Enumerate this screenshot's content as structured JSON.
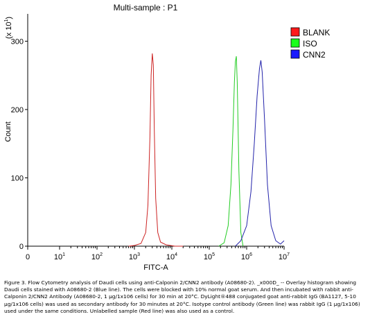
{
  "chart_data": {
    "type": "line",
    "title": "Multi-sample : P1",
    "xlabel": "FITC-A",
    "ylabel": "Count",
    "y_multiplier_label": "(x 10",
    "y_multiplier_exp": "1",
    "y_multiplier_close": ")",
    "x_scale": "log",
    "xlim": [
      0,
      10000000
    ],
    "ylim": [
      0,
      340
    ],
    "x_ticks": [
      {
        "value": 0,
        "base": "0",
        "exp": ""
      },
      {
        "value": 10,
        "base": "10",
        "exp": "1"
      },
      {
        "value": 100,
        "base": "10",
        "exp": "2"
      },
      {
        "value": 1000,
        "base": "10",
        "exp": "3"
      },
      {
        "value": 10000,
        "base": "10",
        "exp": "4"
      },
      {
        "value": 100000,
        "base": "10",
        "exp": "5"
      },
      {
        "value": 1000000,
        "base": "10",
        "exp": "6"
      },
      {
        "value": 10000000,
        "base": "10",
        "exp": "7"
      }
    ],
    "y_ticks": [
      0,
      100,
      200,
      300
    ],
    "grid": false,
    "legend_position": "right",
    "series": [
      {
        "name": "BLANK",
        "color": "#cc2222",
        "legend_color": "#ff1a1a",
        "x": [
          700,
          1000,
          1500,
          2000,
          2300,
          2600,
          2800,
          3000,
          3200,
          3400,
          3700,
          4200,
          5000,
          7000,
          12000,
          20000
        ],
        "y": [
          0,
          1,
          4,
          20,
          60,
          160,
          250,
          282,
          265,
          170,
          70,
          20,
          6,
          2,
          0,
          0
        ]
      },
      {
        "name": "ISO",
        "color": "#22cc22",
        "legend_color": "#1aff1a",
        "x": [
          180000,
          250000,
          320000,
          380000,
          430000,
          470000,
          500000,
          530000,
          560000,
          620000,
          700000,
          800000
        ],
        "y": [
          0,
          5,
          30,
          90,
          170,
          240,
          270,
          278,
          240,
          110,
          20,
          0
        ]
      },
      {
        "name": "CNN2",
        "color": "#2222aa",
        "legend_color": "#1a1aff",
        "x": [
          500000,
          700000,
          1000000,
          1300000,
          1600000,
          1900000,
          2200000,
          2400000,
          2600000,
          3000000,
          3600000,
          4500000,
          6000000,
          8000000,
          10000000
        ],
        "y": [
          0,
          8,
          30,
          80,
          150,
          220,
          260,
          272,
          255,
          185,
          90,
          30,
          8,
          3,
          8
        ]
      }
    ]
  },
  "caption": "Figure 3. Flow Cytometry analysis of Daudi cells using anti-Calponin 2/CNN2 antibody (A08680-2). _x000D_ -- Overlay histogram showing Daudi cells stained with A08680-2 (Blue line). The cells were blocked with 10% normal goat serum. And then incubated with rabbit anti-Calponin 2/CNN2 Antibody (A08680-2, 1 μg/1x106 cells) for 30 min at 20°C. DyLight®488 conjugated goat anti-rabbit IgG (BA1127, 5-10 μg/1x106 cells) was used as secondary antibody for 30 minutes at 20°C. Isotype control antibody (Green line) was rabbit IgG (1 μg/1x106) used under the same conditions. Unlabelled sample (Red line) was also used as a control."
}
